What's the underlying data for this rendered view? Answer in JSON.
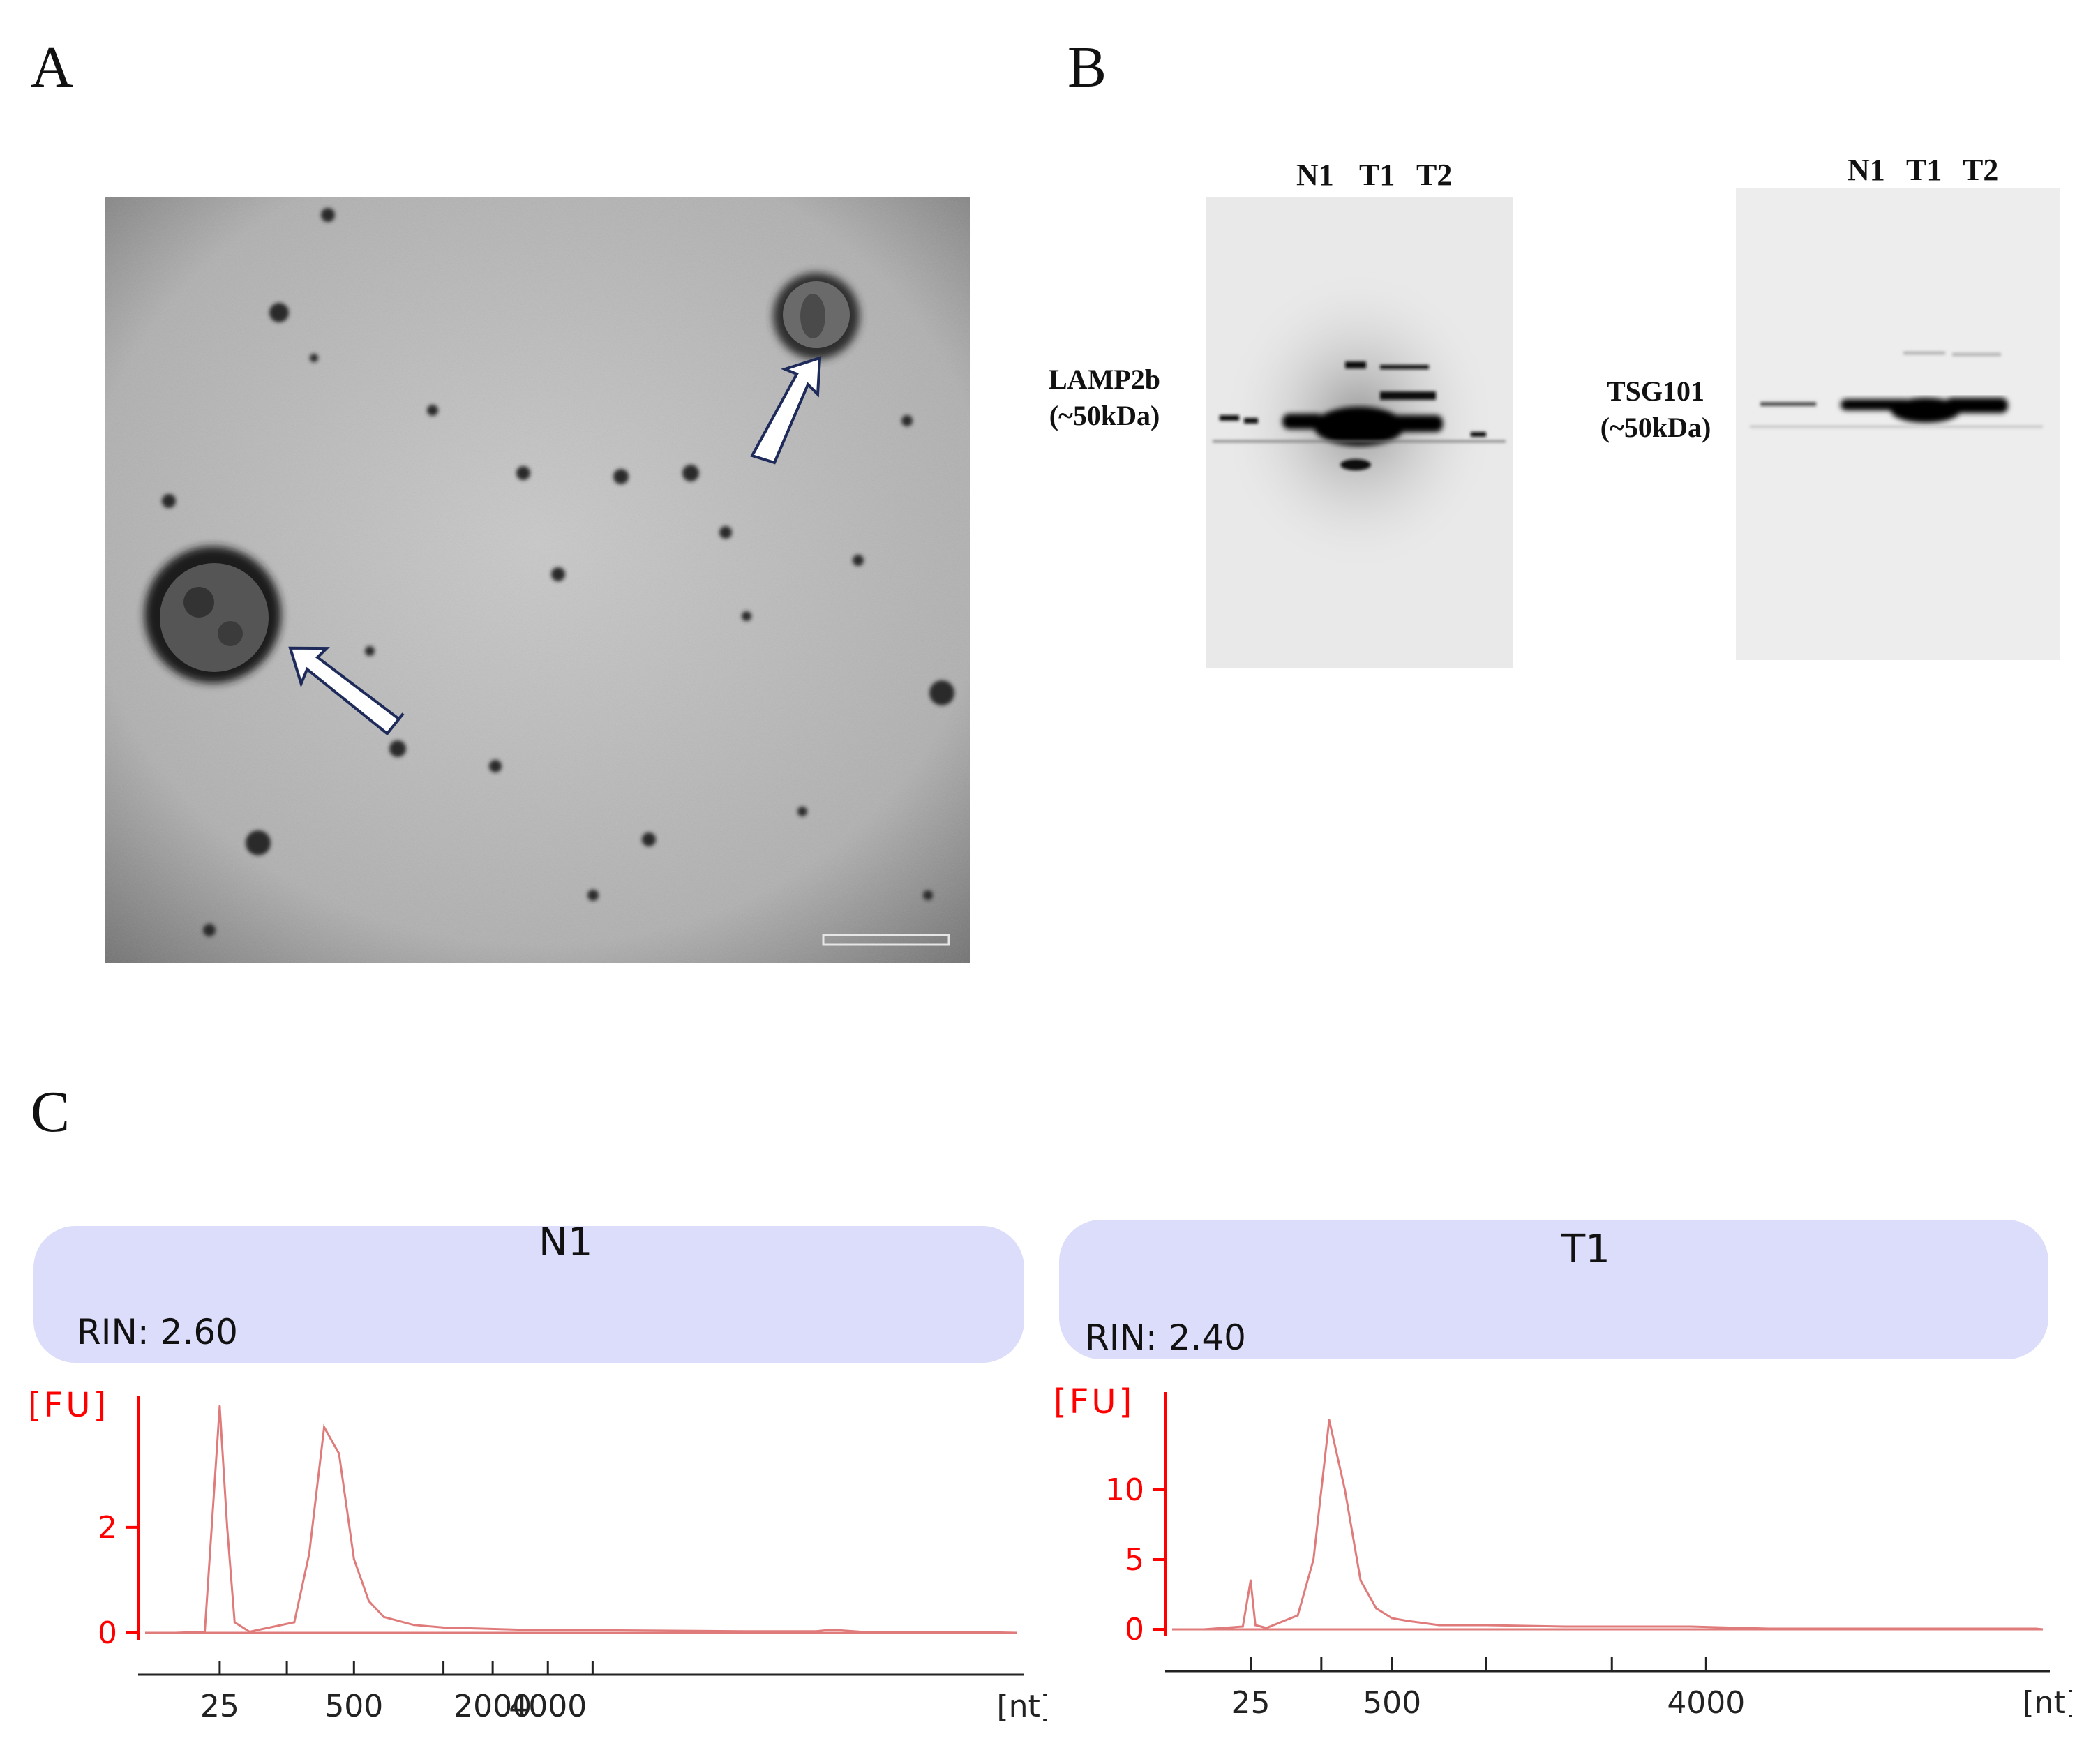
{
  "panels": {
    "a_letter": "A",
    "b_letter": "B",
    "c_letter": "C"
  },
  "blot1": {
    "lanes": [
      "N1",
      "T1",
      "T2"
    ],
    "protein": "LAMP2b",
    "size": "(~50kDa)"
  },
  "blot2": {
    "lanes": [
      "N1",
      "T1",
      "T2"
    ],
    "protein": "TSG101",
    "size": "(~50kDa)"
  },
  "colors": {
    "axis": "#ff0000",
    "trace": "#e07b7b",
    "header_bg": "#dcdcfb"
  },
  "chart_data": [
    {
      "type": "line",
      "title": "N1",
      "annotation": "RIN: 2.60",
      "ylabel": "[FU]",
      "xlabel": "[nt]",
      "yticks": [
        0,
        2
      ],
      "ylim": [
        -0.2,
        4.5
      ],
      "xtick_labels": [
        "25",
        "500",
        "2000",
        "4000"
      ],
      "x": [
        22,
        24,
        25,
        25.5,
        26,
        27,
        30,
        31,
        32,
        33,
        34,
        35,
        36,
        38,
        40,
        45,
        50,
        60,
        65,
        66,
        68,
        75
      ],
      "y": [
        0,
        0.02,
        4.3,
        2.0,
        0.2,
        0.02,
        0.2,
        1.5,
        3.9,
        3.4,
        1.4,
        0.6,
        0.3,
        0.15,
        0.1,
        0.06,
        0.05,
        0.03,
        0.03,
        0.06,
        0.02,
        0.02
      ]
    },
    {
      "type": "line",
      "title": "T1",
      "annotation": "RIN: 2.40",
      "ylabel": "[FU]",
      "xlabel": "[nt]",
      "yticks": [
        0,
        5,
        10
      ],
      "ylim": [
        -1,
        17
      ],
      "xtick_labels": [
        "25",
        "500",
        "4000"
      ],
      "x": [
        22,
        24.5,
        25,
        25.3,
        26,
        28,
        29,
        30,
        31,
        32,
        33,
        34,
        35,
        37,
        40,
        45,
        53,
        58,
        75
      ],
      "y": [
        0,
        0.2,
        3.5,
        0.3,
        0.1,
        1.0,
        5.0,
        15.0,
        10.0,
        3.5,
        1.5,
        0.8,
        0.6,
        0.3,
        0.3,
        0.2,
        0.2,
        0.05,
        0.05
      ]
    }
  ]
}
